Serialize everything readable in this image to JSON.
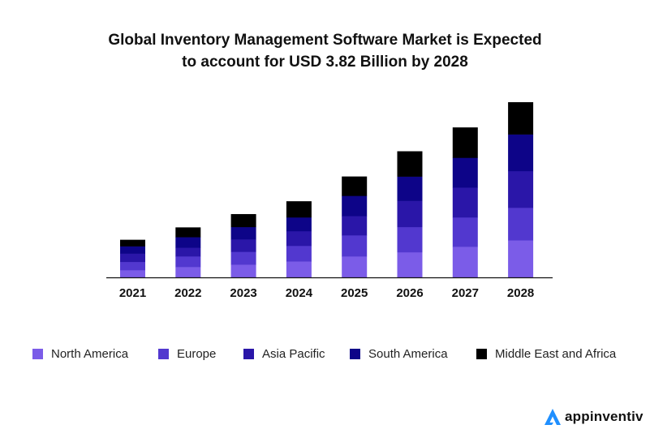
{
  "title_lines": [
    "Global Inventory Management Software Market is Expected",
    "to account for USD 3.82 Billion by 2028"
  ],
  "brand": {
    "name": "appinventiv",
    "icon": "appinventiv-logo-icon",
    "color": "#1f8fff"
  },
  "chart_data": {
    "type": "bar",
    "stacked": true,
    "title": "Global Inventory Management Software Market is Expected to account for USD 3.82 Billion by 2028",
    "xlabel": "",
    "ylabel": "",
    "unit": "USD Billion (estimated from bar heights; 2028 total = 3.82)",
    "categories": [
      "2021",
      "2022",
      "2023",
      "2024",
      "2025",
      "2026",
      "2027",
      "2028"
    ],
    "series": [
      {
        "name": "North America",
        "color": "#7b5ce8",
        "values": [
          0.16,
          0.23,
          0.28,
          0.35,
          0.46,
          0.55,
          0.67,
          0.81
        ]
      },
      {
        "name": "Europe",
        "color": "#5238cf",
        "values": [
          0.18,
          0.23,
          0.28,
          0.34,
          0.46,
          0.55,
          0.64,
          0.71
        ]
      },
      {
        "name": "Asia Pacific",
        "color": "#2a16a8",
        "values": [
          0.18,
          0.19,
          0.27,
          0.32,
          0.42,
          0.57,
          0.65,
          0.8
        ]
      },
      {
        "name": "South America",
        "color": "#0d0488",
        "values": [
          0.16,
          0.23,
          0.27,
          0.3,
          0.44,
          0.53,
          0.65,
          0.8
        ]
      },
      {
        "name": "Middle East and Africa",
        "color": "#000000",
        "values": [
          0.14,
          0.21,
          0.28,
          0.35,
          0.42,
          0.55,
          0.66,
          0.7
        ]
      }
    ],
    "totals": [
      0.82,
      1.09,
      1.38,
      1.66,
      2.2,
      2.75,
      3.27,
      3.82
    ],
    "ylim": [
      0,
      3.82
    ],
    "y_axis_visible": false,
    "grid": false,
    "legend_position": "bottom"
  }
}
